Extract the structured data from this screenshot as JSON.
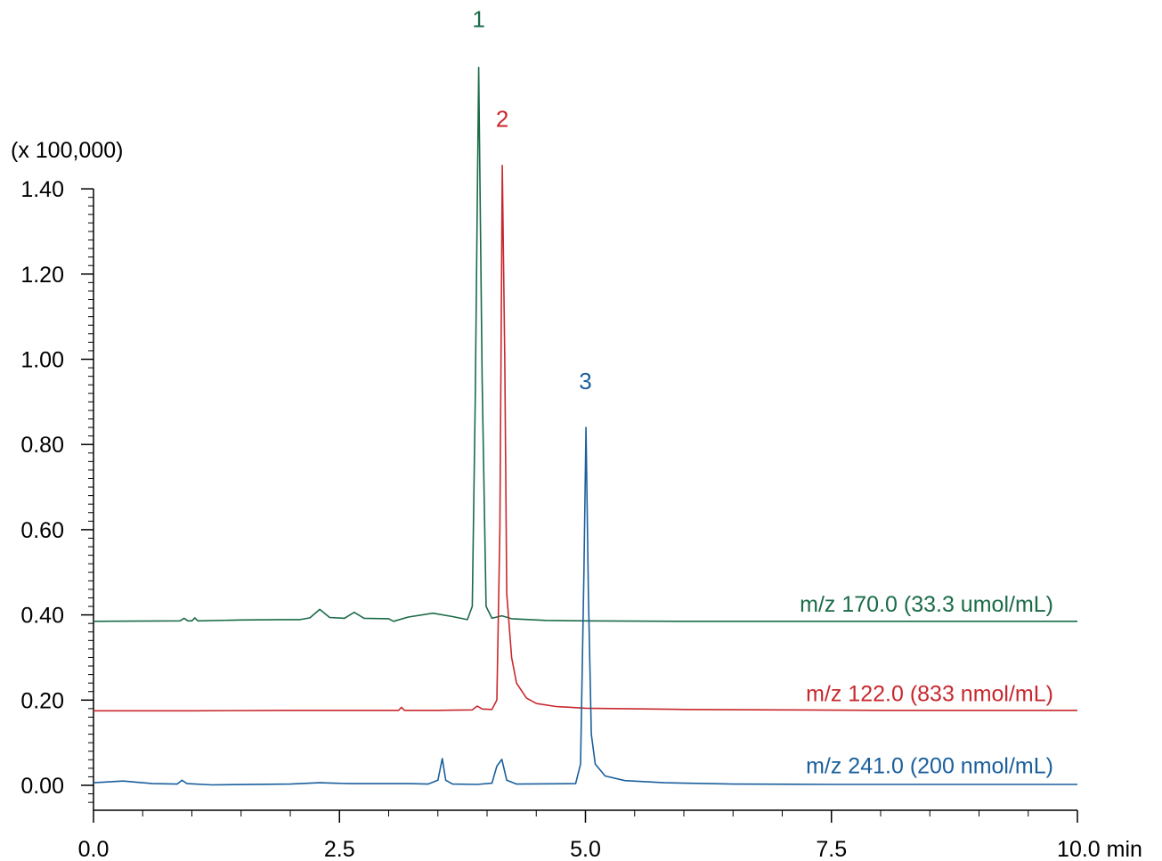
{
  "chart_data": {
    "type": "line",
    "y_scale_label": "(x 100,000)",
    "x_unit": "min",
    "xlim": [
      0,
      10
    ],
    "ylim": [
      -0.05,
      1.42
    ],
    "x_ticks": [
      "0.0",
      "2.5",
      "5.0",
      "7.5",
      "10.0"
    ],
    "y_ticks": [
      "0.00",
      "0.20",
      "0.40",
      "0.60",
      "0.80",
      "1.00",
      "1.20",
      "1.40"
    ],
    "grid": false,
    "series": [
      {
        "name": "m/z 170.0 (33.3 umol/mL)",
        "color": "#1a6b48",
        "baseline": 0.385,
        "points": [
          [
            0.0,
            0.385
          ],
          [
            0.88,
            0.386
          ],
          [
            0.92,
            0.392
          ],
          [
            0.96,
            0.386
          ],
          [
            1.0,
            0.386
          ],
          [
            1.03,
            0.393
          ],
          [
            1.06,
            0.386
          ],
          [
            1.5,
            0.388
          ],
          [
            1.9,
            0.389
          ],
          [
            2.1,
            0.389
          ],
          [
            2.2,
            0.393
          ],
          [
            2.3,
            0.413
          ],
          [
            2.4,
            0.394
          ],
          [
            2.55,
            0.392
          ],
          [
            2.65,
            0.406
          ],
          [
            2.75,
            0.392
          ],
          [
            3.0,
            0.391
          ],
          [
            3.05,
            0.385
          ],
          [
            3.2,
            0.395
          ],
          [
            3.45,
            0.404
          ],
          [
            3.65,
            0.396
          ],
          [
            3.8,
            0.389
          ],
          [
            3.85,
            0.42
          ],
          [
            3.88,
            0.9
          ],
          [
            3.915,
            1.685
          ],
          [
            3.95,
            0.95
          ],
          [
            3.99,
            0.42
          ],
          [
            4.05,
            0.392
          ],
          [
            4.15,
            0.398
          ],
          [
            4.25,
            0.391
          ],
          [
            4.6,
            0.387
          ],
          [
            5.0,
            0.386
          ],
          [
            6.0,
            0.385
          ],
          [
            7.0,
            0.385
          ],
          [
            8.0,
            0.385
          ],
          [
            9.0,
            0.385
          ],
          [
            10.0,
            0.385
          ]
        ]
      },
      {
        "name": "m/z 122.0 (833 nmol/mL)",
        "color": "#c8282d",
        "baseline": 0.175,
        "points": [
          [
            0.0,
            0.175
          ],
          [
            1.0,
            0.175
          ],
          [
            2.0,
            0.176
          ],
          [
            3.0,
            0.176
          ],
          [
            3.1,
            0.176
          ],
          [
            3.13,
            0.183
          ],
          [
            3.16,
            0.176
          ],
          [
            3.5,
            0.176
          ],
          [
            3.85,
            0.177
          ],
          [
            3.9,
            0.186
          ],
          [
            3.95,
            0.179
          ],
          [
            4.05,
            0.178
          ],
          [
            4.1,
            0.2
          ],
          [
            4.13,
            0.6
          ],
          [
            4.155,
            1.455
          ],
          [
            4.18,
            1.0
          ],
          [
            4.2,
            0.45
          ],
          [
            4.25,
            0.3
          ],
          [
            4.3,
            0.24
          ],
          [
            4.4,
            0.205
          ],
          [
            4.5,
            0.192
          ],
          [
            4.7,
            0.185
          ],
          [
            5.0,
            0.181
          ],
          [
            6.0,
            0.178
          ],
          [
            7.0,
            0.177
          ],
          [
            8.0,
            0.176
          ],
          [
            9.0,
            0.176
          ],
          [
            10.0,
            0.176
          ]
        ]
      },
      {
        "name": "m/z 241.0 (200 nmol/mL)",
        "color": "#1a5f9c",
        "baseline": 0.005,
        "points": [
          [
            0.0,
            0.006
          ],
          [
            0.3,
            0.01
          ],
          [
            0.6,
            0.004
          ],
          [
            0.85,
            0.003
          ],
          [
            0.9,
            0.012
          ],
          [
            0.95,
            0.004
          ],
          [
            1.2,
            0.001
          ],
          [
            2.0,
            0.003
          ],
          [
            2.3,
            0.006
          ],
          [
            2.6,
            0.004
          ],
          [
            3.2,
            0.004
          ],
          [
            3.4,
            0.003
          ],
          [
            3.5,
            0.012
          ],
          [
            3.545,
            0.063
          ],
          [
            3.58,
            0.012
          ],
          [
            3.65,
            0.003
          ],
          [
            3.9,
            0.002
          ],
          [
            4.05,
            0.005
          ],
          [
            4.1,
            0.045
          ],
          [
            4.15,
            0.061
          ],
          [
            4.2,
            0.012
          ],
          [
            4.3,
            0.003
          ],
          [
            4.9,
            0.004
          ],
          [
            4.95,
            0.05
          ],
          [
            4.985,
            0.5
          ],
          [
            5.005,
            0.84
          ],
          [
            5.03,
            0.45
          ],
          [
            5.06,
            0.12
          ],
          [
            5.1,
            0.05
          ],
          [
            5.2,
            0.022
          ],
          [
            5.4,
            0.011
          ],
          [
            5.8,
            0.006
          ],
          [
            6.5,
            0.003
          ],
          [
            7.5,
            0.002
          ],
          [
            8.5,
            0.002
          ],
          [
            10.0,
            0.002
          ]
        ]
      }
    ],
    "peak_labels": [
      {
        "text": "1",
        "x": 3.915,
        "y": 1.78,
        "color": "#1a6b48"
      },
      {
        "text": "2",
        "x": 4.155,
        "y": 1.545,
        "color": "#c8282d"
      },
      {
        "text": "3",
        "x": 5.0,
        "y": 0.93,
        "color": "#1a5f9c"
      }
    ]
  }
}
